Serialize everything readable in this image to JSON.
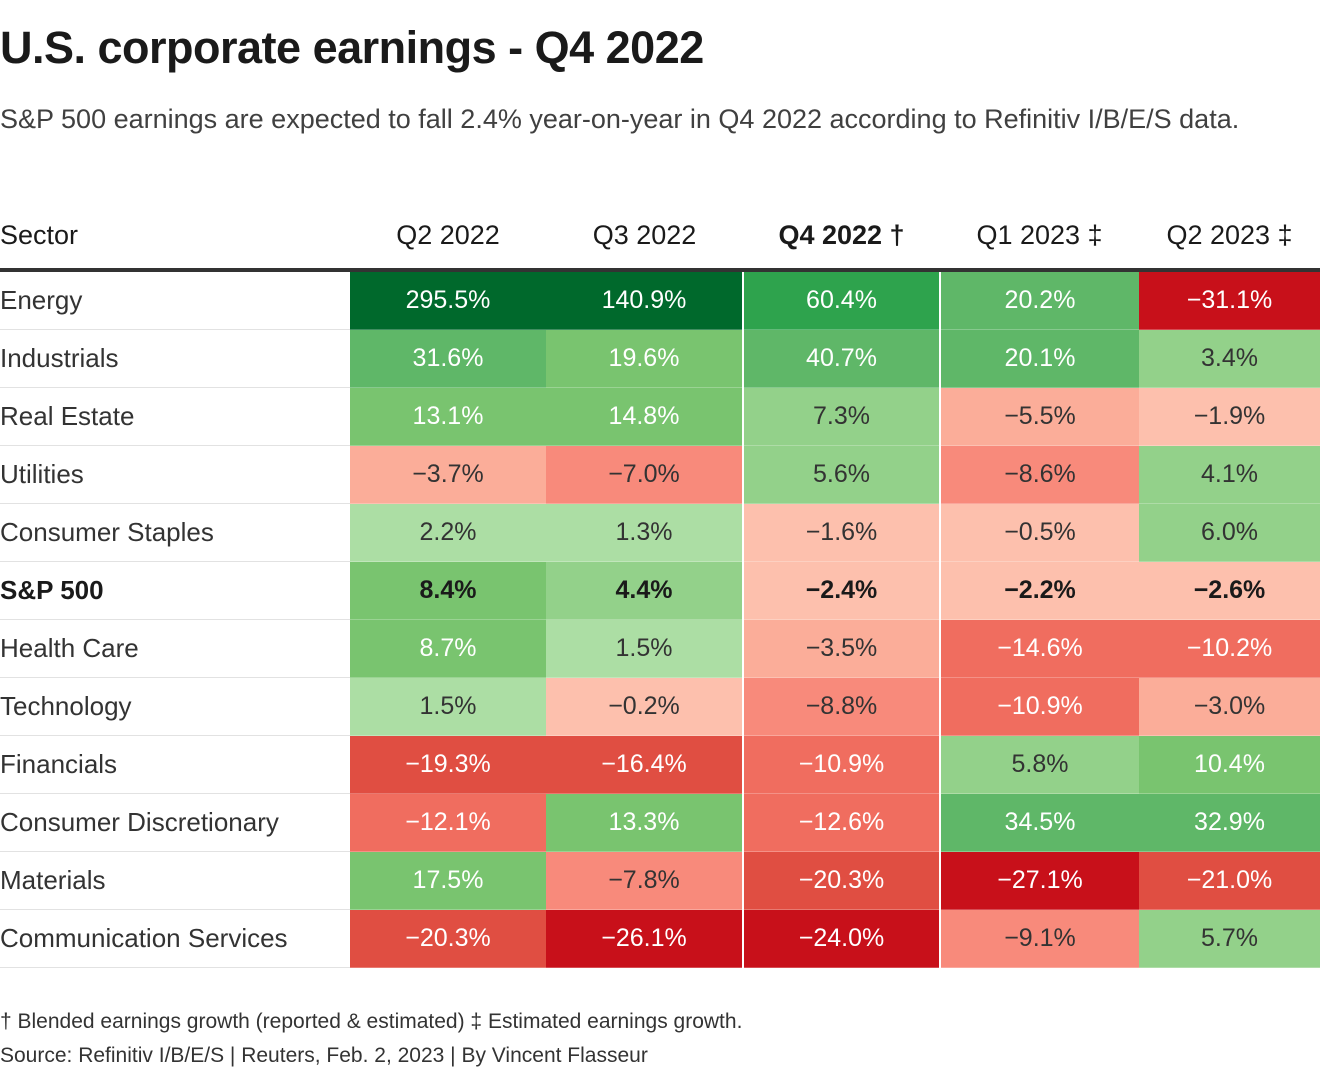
{
  "header": {
    "title": "U.S. corporate earnings - Q4 2022",
    "subtitle": "S&P 500 earnings are expected to fall 2.4% year-on-year in Q4 2022 according to Refinitiv I/B/E/S data."
  },
  "chart_data": {
    "type": "heatmap",
    "title": "U.S. corporate earnings - Q4 2022",
    "row_header": "Sector",
    "columns": [
      "Q2 2022",
      "Q3 2022",
      "Q4 2022 †",
      "Q1 2023 ‡",
      "Q2 2023 ‡"
    ],
    "highlight_column": 2,
    "rows": [
      {
        "sector": "Energy",
        "values": [
          295.5,
          140.9,
          60.4,
          20.2,
          -31.1
        ],
        "bold": false
      },
      {
        "sector": "Industrials",
        "values": [
          31.6,
          19.6,
          40.7,
          20.1,
          3.4
        ],
        "bold": false
      },
      {
        "sector": "Real Estate",
        "values": [
          13.1,
          14.8,
          7.3,
          -5.5,
          -1.9
        ],
        "bold": false
      },
      {
        "sector": "Utilities",
        "values": [
          -3.7,
          -7.0,
          5.6,
          -8.6,
          4.1
        ],
        "bold": false
      },
      {
        "sector": "Consumer Staples",
        "values": [
          2.2,
          1.3,
          -1.6,
          -0.5,
          6.0
        ],
        "bold": false
      },
      {
        "sector": "S&P 500",
        "values": [
          8.4,
          4.4,
          -2.4,
          -2.2,
          -2.6
        ],
        "bold": true
      },
      {
        "sector": "Health Care",
        "values": [
          8.7,
          1.5,
          -3.5,
          -14.6,
          -10.2
        ],
        "bold": false
      },
      {
        "sector": "Technology",
        "values": [
          1.5,
          -0.2,
          -8.8,
          -10.9,
          -3.0
        ],
        "bold": false
      },
      {
        "sector": "Financials",
        "values": [
          -19.3,
          -16.4,
          -10.9,
          5.8,
          10.4
        ],
        "bold": false
      },
      {
        "sector": "Consumer Discretionary",
        "values": [
          -12.1,
          13.3,
          -12.6,
          34.5,
          32.9
        ],
        "bold": false
      },
      {
        "sector": "Materials",
        "values": [
          17.5,
          -7.8,
          -20.3,
          -27.1,
          -21.0
        ],
        "bold": false
      },
      {
        "sector": "Communication Services",
        "values": [
          -20.3,
          -26.1,
          -24.0,
          -9.1,
          5.7
        ],
        "bold": false
      }
    ],
    "unit": "%",
    "color_scale": {
      "positive": [
        "#acdea4",
        "#93d18a",
        "#79c46f",
        "#5fb768",
        "#2ea34d",
        "#00692c"
      ],
      "negative": [
        "#fdc0ad",
        "#fbad99",
        "#f88a7b",
        "#f06d5f",
        "#e04e42",
        "#c8101a"
      ],
      "light_text": "#ffffff",
      "dark_text": "#333333"
    }
  },
  "footer": {
    "footnote": "† Blended earnings growth (reported & estimated) ‡ Estimated earnings growth.",
    "source": "Source: Refinitiv I/B/E/S | Reuters, Feb. 2, 2023 | By Vincent Flasseur"
  }
}
